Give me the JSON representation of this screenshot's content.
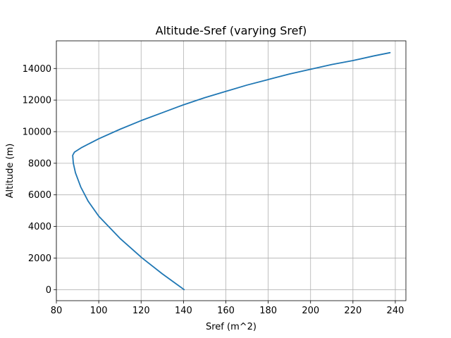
{
  "chart_data": {
    "type": "line",
    "title": "Altitude-Sref (varying Sref)",
    "xlabel": "Sref (m^2)",
    "ylabel": "Altitude (m)",
    "xlim": [
      80,
      245
    ],
    "ylim": [
      -700,
      15750
    ],
    "xticks": [
      80,
      100,
      120,
      140,
      160,
      180,
      200,
      220,
      240
    ],
    "yticks": [
      0,
      2000,
      4000,
      6000,
      8000,
      10000,
      12000,
      14000
    ],
    "grid": true,
    "line_color": "#1f77b4",
    "series": [
      {
        "x": [
          140.3,
          130.0,
          120.5,
          110.0,
          100.0,
          95.0,
          91.5,
          89.0,
          88.0,
          87.7,
          88.5,
          92.0,
          100.0,
          110.0,
          120.0,
          130.0,
          140.0,
          150.0,
          160.0,
          170.0,
          180.0,
          190.0,
          200.0,
          210.0,
          220.0,
          230.0,
          237.5
        ],
        "y": [
          0,
          1000,
          2000,
          3250,
          4650,
          5600,
          6500,
          7400,
          8000,
          8500,
          8700,
          9000,
          9550,
          10150,
          10700,
          11200,
          11700,
          12150,
          12550,
          12950,
          13300,
          13650,
          13950,
          14250,
          14500,
          14800,
          15000
        ]
      }
    ]
  }
}
